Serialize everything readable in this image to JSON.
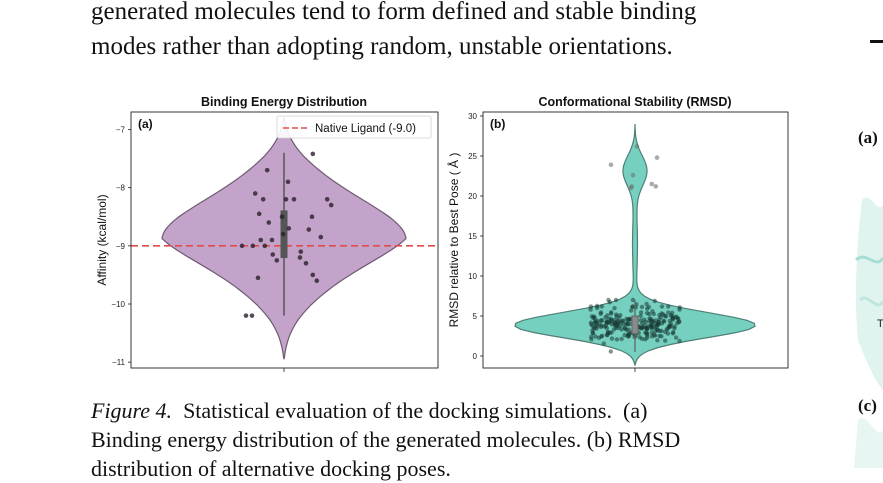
{
  "body_text": {
    "line1": "generated molecules tend to form defined and stable binding",
    "line2": "modes rather than adopting random, unstable orientations."
  },
  "caption": {
    "figure_label": "Figure 4.",
    "line1_rest": "  Statistical evaluation of the docking simulations.  (a)",
    "line2": "Binding energy distribution of the generated molecules. (b) RMSD",
    "line3": "distribution of alternative docking poses."
  },
  "right_column": {
    "label_a": "(a)",
    "label_c": "(c)",
    "fragment_text": "T"
  },
  "chart_data": [
    {
      "type": "violin",
      "panel_label": "(a)",
      "title": "Binding Energy Distribution",
      "xlabel": "",
      "ylabel": "Affinity (kcal/mol)",
      "ylim": [
        -11.1,
        -6.7
      ],
      "yticks": [
        -7,
        -8,
        -9,
        -10,
        -11
      ],
      "color": "#c3a3c9",
      "reference_line": {
        "value": -9.0,
        "label": "Native Ligand (-9.0)",
        "color": "#e34b4b"
      },
      "legend": "top-right",
      "violin_range": [
        -10.95,
        -6.8
      ],
      "box": {
        "q1": -9.2,
        "median": -8.9,
        "q3": -8.4,
        "whisker_low": -10.2,
        "whisker_high": -7.4
      },
      "points": [
        {
          "x": 0.72,
          "y": -7.42
        },
        {
          "x": -0.42,
          "y": -7.7
        },
        {
          "x": 0.1,
          "y": -7.9
        },
        {
          "x": -0.72,
          "y": -8.1
        },
        {
          "x": -0.52,
          "y": -8.2
        },
        {
          "x": 0.05,
          "y": -8.2
        },
        {
          "x": 0.25,
          "y": -8.2
        },
        {
          "x": 1.08,
          "y": -8.2
        },
        {
          "x": 1.18,
          "y": -8.3
        },
        {
          "x": -0.62,
          "y": -8.45
        },
        {
          "x": -0.05,
          "y": -8.5
        },
        {
          "x": -0.38,
          "y": -8.6
        },
        {
          "x": 0.7,
          "y": -8.5
        },
        {
          "x": 0.12,
          "y": -8.7
        },
        {
          "x": -0.02,
          "y": -8.8
        },
        {
          "x": 0.62,
          "y": -8.72
        },
        {
          "x": -0.58,
          "y": -8.9
        },
        {
          "x": -0.3,
          "y": -8.9
        },
        {
          "x": 0.92,
          "y": -8.85
        },
        {
          "x": -0.48,
          "y": -9.0
        },
        {
          "x": -0.78,
          "y": -9.0
        },
        {
          "x": -1.05,
          "y": -9.0
        },
        {
          "x": 0.42,
          "y": -9.1
        },
        {
          "x": -0.28,
          "y": -9.15
        },
        {
          "x": 0.4,
          "y": -9.2
        },
        {
          "x": 0.55,
          "y": -9.3
        },
        {
          "x": 0.72,
          "y": -9.5
        },
        {
          "x": -0.65,
          "y": -9.55
        },
        {
          "x": 0.82,
          "y": -9.6
        },
        {
          "x": -0.18,
          "y": -9.25
        },
        {
          "x": -0.95,
          "y": -10.2
        },
        {
          "x": -0.8,
          "y": -10.2
        }
      ]
    },
    {
      "type": "violin",
      "panel_label": "(b)",
      "title": "Conformational Stability (RMSD)",
      "xlabel": "",
      "ylabel": "RMSD relative to Best Pose ( Å )",
      "ylim": [
        -1.5,
        30.5
      ],
      "yticks": [
        0,
        5,
        10,
        15,
        20,
        25,
        30
      ],
      "color": "#76d0bf",
      "violin_range": [
        -1.2,
        29.0
      ],
      "box": {
        "q1": 2.8,
        "median": 3.8,
        "q3": 5.0,
        "whisker_low": 0.5,
        "whisker_high": 7.0
      },
      "points_summary": "about 240 poses, mostly between 0 and 7 Å, plus a small cluster near 21–27 Å",
      "outlier_points": [
        {
          "x": -0.6,
          "y": 23.9
        },
        {
          "x": -0.08,
          "y": 21.2
        },
        {
          "x": -0.1,
          "y": 21.0
        },
        {
          "x": 0.05,
          "y": 26.2
        },
        {
          "x": 0.55,
          "y": 24.8
        },
        {
          "x": 0.42,
          "y": 21.5
        },
        {
          "x": 0.52,
          "y": 21.2
        },
        {
          "x": -0.05,
          "y": 22.6
        }
      ]
    }
  ]
}
